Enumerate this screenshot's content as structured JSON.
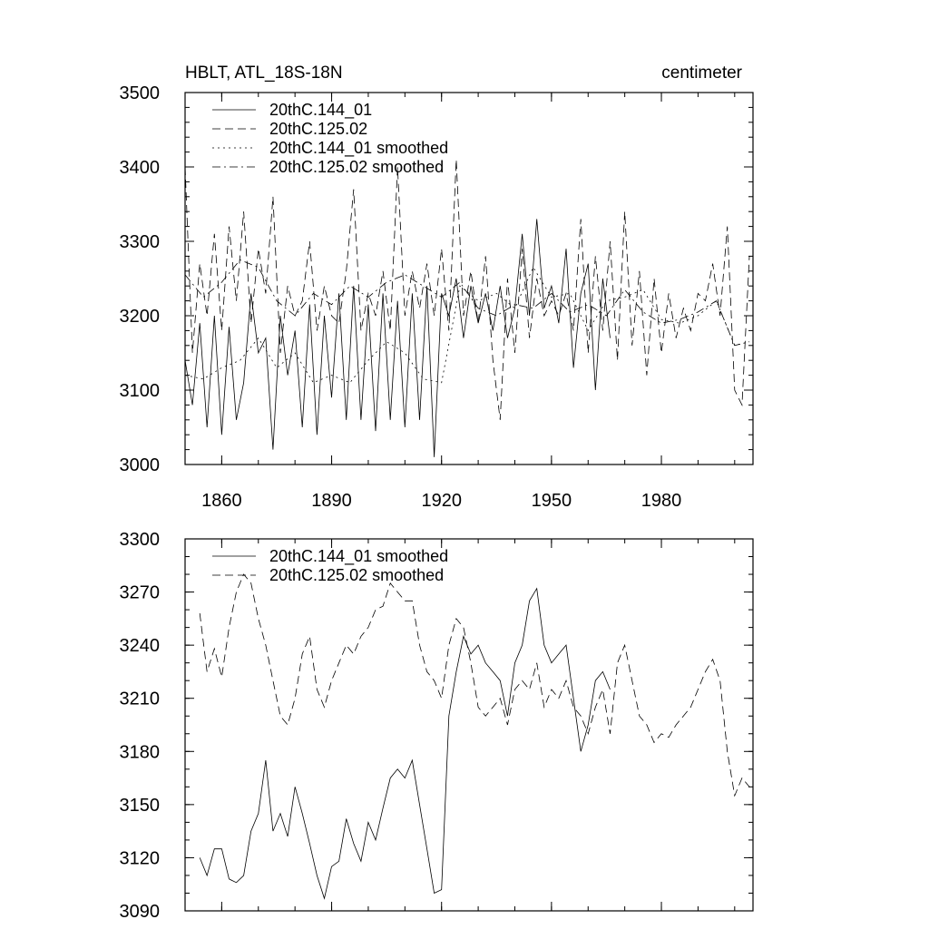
{
  "chart_data": [
    {
      "type": "line",
      "title": "HBLT, ATL_18S-18N",
      "units": "centimeter",
      "xlim": [
        1850,
        2005
      ],
      "ylim": [
        3000,
        3500
      ],
      "xticks": [
        1860,
        1890,
        1920,
        1950,
        1980
      ],
      "xtick_labels": [
        "1860",
        "1890",
        "1920",
        "1950",
        "1980"
      ],
      "yticks": [
        3000,
        3100,
        3200,
        3300,
        3400,
        3500
      ],
      "ytick_labels": [
        "3000",
        "3100",
        "3200",
        "3300",
        "3400",
        "3500"
      ],
      "grid": false,
      "legend_position": "top-left",
      "series": [
        {
          "name": "20thC.144_01",
          "dash": "solid",
          "x": [
            1850,
            1852,
            1854,
            1856,
            1858,
            1860,
            1862,
            1864,
            1866,
            1868,
            1870,
            1872,
            1874,
            1876,
            1878,
            1880,
            1882,
            1884,
            1886,
            1888,
            1890,
            1892,
            1894,
            1896,
            1898,
            1900,
            1902,
            1904,
            1906,
            1908,
            1910,
            1912,
            1914,
            1916,
            1918,
            1920,
            1922,
            1924,
            1926,
            1928,
            1930,
            1932,
            1934,
            1936,
            1938,
            1940,
            1942,
            1944,
            1946,
            1948,
            1950,
            1952,
            1954,
            1956,
            1958,
            1960,
            1962,
            1964,
            1966
          ],
          "y": [
            3140,
            3080,
            3190,
            3050,
            3200,
            3040,
            3185,
            3060,
            3110,
            3230,
            3150,
            3170,
            3020,
            3200,
            3120,
            3180,
            3050,
            3215,
            3040,
            3200,
            3090,
            3230,
            3060,
            3240,
            3060,
            3215,
            3045,
            3230,
            3060,
            3220,
            3050,
            3230,
            3060,
            3240,
            3010,
            3230,
            3200,
            3250,
            3170,
            3240,
            3190,
            3230,
            3180,
            3240,
            3170,
            3210,
            3310,
            3200,
            3330,
            3210,
            3240,
            3190,
            3290,
            3130,
            3230,
            3270,
            3100,
            3250,
            3170
          ]
        },
        {
          "name": "20thC.125.02",
          "dash": "dashed",
          "x": [
            1850,
            1852,
            1854,
            1856,
            1858,
            1860,
            1862,
            1864,
            1866,
            1868,
            1870,
            1872,
            1874,
            1876,
            1878,
            1880,
            1882,
            1884,
            1886,
            1888,
            1890,
            1892,
            1894,
            1896,
            1898,
            1900,
            1902,
            1904,
            1906,
            1908,
            1910,
            1912,
            1914,
            1916,
            1918,
            1920,
            1922,
            1924,
            1926,
            1928,
            1930,
            1932,
            1934,
            1936,
            1938,
            1940,
            1942,
            1944,
            1946,
            1948,
            1950,
            1952,
            1954,
            1956,
            1958,
            1960,
            1962,
            1964,
            1966,
            1968,
            1970,
            1972,
            1974,
            1976,
            1978,
            1980,
            1982,
            1984,
            1986,
            1988,
            1990,
            1992,
            1994,
            1996,
            1998,
            2000,
            2002,
            2004
          ],
          "y": [
            3400,
            3150,
            3270,
            3200,
            3310,
            3180,
            3320,
            3220,
            3340,
            3190,
            3290,
            3230,
            3360,
            3150,
            3240,
            3200,
            3220,
            3300,
            3180,
            3240,
            3200,
            3190,
            3260,
            3370,
            3180,
            3230,
            3200,
            3260,
            3180,
            3400,
            3200,
            3260,
            3210,
            3270,
            3200,
            3290,
            3180,
            3410,
            3200,
            3260,
            3190,
            3280,
            3140,
            3060,
            3250,
            3150,
            3290,
            3170,
            3250,
            3200,
            3220,
            3200,
            3230,
            3180,
            3330,
            3150,
            3280,
            3180,
            3300,
            3140,
            3340,
            3160,
            3260,
            3120,
            3250,
            3150,
            3230,
            3170,
            3210,
            3180,
            3230,
            3220,
            3270,
            3200,
            3320,
            3100,
            3080,
            3280
          ]
        },
        {
          "name": "20thC.144_01 smoothed",
          "dash": "dotted",
          "x": [
            1850,
            1855,
            1860,
            1865,
            1870,
            1875,
            1880,
            1885,
            1890,
            1895,
            1900,
            1905,
            1910,
            1915,
            1920,
            1925,
            1930,
            1935,
            1940,
            1945,
            1950,
            1955,
            1960,
            1965,
            1970,
            1975,
            1980,
            1985,
            1990,
            1995,
            2000,
            2004
          ],
          "y": [
            3120,
            3115,
            3130,
            3140,
            3170,
            3130,
            3150,
            3110,
            3120,
            3110,
            3140,
            3165,
            3150,
            3115,
            3110,
            3240,
            3220,
            3230,
            3210,
            3265,
            3225,
            3230,
            3180,
            3220,
            3225,
            3235,
            3195,
            3190,
            3200,
            3220,
            3160,
            3165
          ]
        },
        {
          "name": "20thC.125.02 smoothed",
          "dash": "dashdot",
          "x": [
            1850,
            1855,
            1860,
            1865,
            1870,
            1875,
            1880,
            1885,
            1890,
            1895,
            1900,
            1905,
            1910,
            1915,
            1920,
            1925,
            1930,
            1935,
            1940,
            1945,
            1950,
            1955,
            1960,
            1965,
            1970,
            1975,
            1980,
            1985,
            1990,
            1995,
            2000,
            2004
          ],
          "y": [
            3255,
            3225,
            3245,
            3275,
            3265,
            3220,
            3200,
            3230,
            3215,
            3240,
            3225,
            3245,
            3255,
            3240,
            3225,
            3245,
            3210,
            3200,
            3215,
            3210,
            3230,
            3205,
            3215,
            3200,
            3235,
            3205,
            3190,
            3195,
            3205,
            3220,
            3160,
            3165
          ]
        }
      ]
    },
    {
      "type": "line",
      "title": "",
      "xlim": [
        1850,
        2005
      ],
      "ylim": [
        3090,
        3300
      ],
      "xticks": [
        1860,
        1890,
        1920,
        1950,
        1980
      ],
      "yticks": [
        3090,
        3120,
        3150,
        3180,
        3210,
        3240,
        3270,
        3300
      ],
      "ytick_labels": [
        "3090",
        "3120",
        "3150",
        "3180",
        "3210",
        "3240",
        "3270",
        "3300"
      ],
      "grid": false,
      "legend_position": "top-left",
      "series": [
        {
          "name": "20thC.144_01 smoothed",
          "dash": "solid",
          "x": [
            1854,
            1856,
            1858,
            1860,
            1862,
            1864,
            1866,
            1868,
            1870,
            1872,
            1874,
            1876,
            1878,
            1880,
            1882,
            1884,
            1886,
            1888,
            1890,
            1892,
            1894,
            1896,
            1898,
            1900,
            1902,
            1904,
            1906,
            1908,
            1910,
            1912,
            1914,
            1916,
            1918,
            1920,
            1922,
            1924,
            1926,
            1928,
            1930,
            1932,
            1934,
            1936,
            1938,
            1940,
            1942,
            1944,
            1946,
            1948,
            1950,
            1952,
            1954,
            1956,
            1958,
            1960,
            1962,
            1964,
            1966
          ],
          "y": [
            3120,
            3110,
            3125,
            3125,
            3108,
            3106,
            3110,
            3135,
            3145,
            3175,
            3135,
            3145,
            3132,
            3160,
            3145,
            3128,
            3110,
            3097,
            3115,
            3118,
            3142,
            3128,
            3118,
            3140,
            3130,
            3148,
            3165,
            3170,
            3165,
            3175,
            3150,
            3125,
            3100,
            3102,
            3200,
            3225,
            3245,
            3235,
            3240,
            3230,
            3225,
            3220,
            3200,
            3230,
            3240,
            3265,
            3272,
            3240,
            3230,
            3235,
            3240,
            3210,
            3180,
            3195,
            3220,
            3225,
            3215
          ]
        },
        {
          "name": "20thC.125.02 smoothed",
          "dash": "dashed",
          "x": [
            1854,
            1856,
            1858,
            1860,
            1862,
            1864,
            1866,
            1868,
            1870,
            1872,
            1874,
            1876,
            1878,
            1880,
            1882,
            1884,
            1886,
            1888,
            1890,
            1892,
            1894,
            1896,
            1898,
            1900,
            1902,
            1904,
            1906,
            1908,
            1910,
            1912,
            1914,
            1916,
            1918,
            1920,
            1922,
            1924,
            1926,
            1928,
            1930,
            1932,
            1934,
            1936,
            1938,
            1940,
            1942,
            1944,
            1946,
            1948,
            1950,
            1952,
            1954,
            1956,
            1958,
            1960,
            1962,
            1964,
            1966,
            1968,
            1970,
            1972,
            1974,
            1976,
            1978,
            1980,
            1982,
            1984,
            1986,
            1988,
            1990,
            1992,
            1994,
            1996,
            1998,
            2000,
            2002,
            2004
          ],
          "y": [
            3258,
            3225,
            3238,
            3222,
            3250,
            3270,
            3280,
            3275,
            3255,
            3240,
            3220,
            3200,
            3195,
            3210,
            3235,
            3245,
            3215,
            3205,
            3220,
            3230,
            3240,
            3235,
            3245,
            3250,
            3260,
            3262,
            3275,
            3270,
            3265,
            3265,
            3240,
            3225,
            3220,
            3210,
            3240,
            3255,
            3250,
            3230,
            3205,
            3200,
            3205,
            3210,
            3195,
            3215,
            3220,
            3215,
            3230,
            3205,
            3215,
            3210,
            3220,
            3205,
            3200,
            3190,
            3205,
            3215,
            3190,
            3230,
            3240,
            3220,
            3200,
            3195,
            3185,
            3190,
            3188,
            3195,
            3200,
            3205,
            3215,
            3225,
            3232,
            3220,
            3180,
            3155,
            3165,
            3160
          ]
        }
      ]
    }
  ]
}
